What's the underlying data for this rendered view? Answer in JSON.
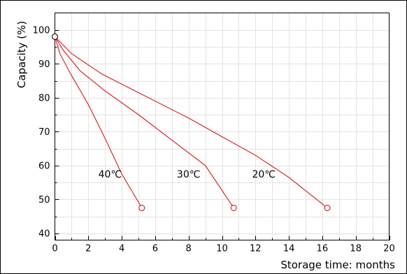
{
  "chart_data": {
    "type": "line",
    "title": "",
    "xlabel": "Storage time: months",
    "ylabel": "Capacity (%)",
    "xlim": [
      0,
      20
    ],
    "ylim": [
      38,
      105
    ],
    "x_ticks": [
      0,
      2,
      4,
      6,
      8,
      10,
      12,
      14,
      16,
      18,
      20
    ],
    "y_ticks": [
      40,
      50,
      60,
      70,
      80,
      90,
      100
    ],
    "grid": true,
    "line_color": "#e0141e",
    "start_point": {
      "x": 0,
      "y": 98
    },
    "series": [
      {
        "name": "40℃",
        "points": [
          [
            0,
            98
          ],
          [
            0.3,
            93
          ],
          [
            1,
            86.5
          ],
          [
            2,
            78
          ],
          [
            3,
            68
          ],
          [
            4,
            57.5
          ],
          [
            5.2,
            47.5
          ]
        ]
      },
      {
        "name": "30℃",
        "points": [
          [
            0,
            98
          ],
          [
            0.5,
            94
          ],
          [
            1.5,
            88
          ],
          [
            3,
            82
          ],
          [
            5,
            75
          ],
          [
            7,
            67.5
          ],
          [
            9,
            60
          ],
          [
            10.7,
            47.5
          ]
        ]
      },
      {
        "name": "20℃",
        "points": [
          [
            0,
            98
          ],
          [
            1,
            93
          ],
          [
            2.8,
            87
          ],
          [
            5,
            81.5
          ],
          [
            8,
            74
          ],
          [
            10,
            68.5
          ],
          [
            12,
            63
          ],
          [
            14,
            56.5
          ],
          [
            16.3,
            47.5
          ]
        ]
      }
    ],
    "series_label_positions": [
      [
        3.3,
        56.5
      ],
      [
        8,
        56.5
      ],
      [
        12.5,
        56.5
      ]
    ]
  }
}
